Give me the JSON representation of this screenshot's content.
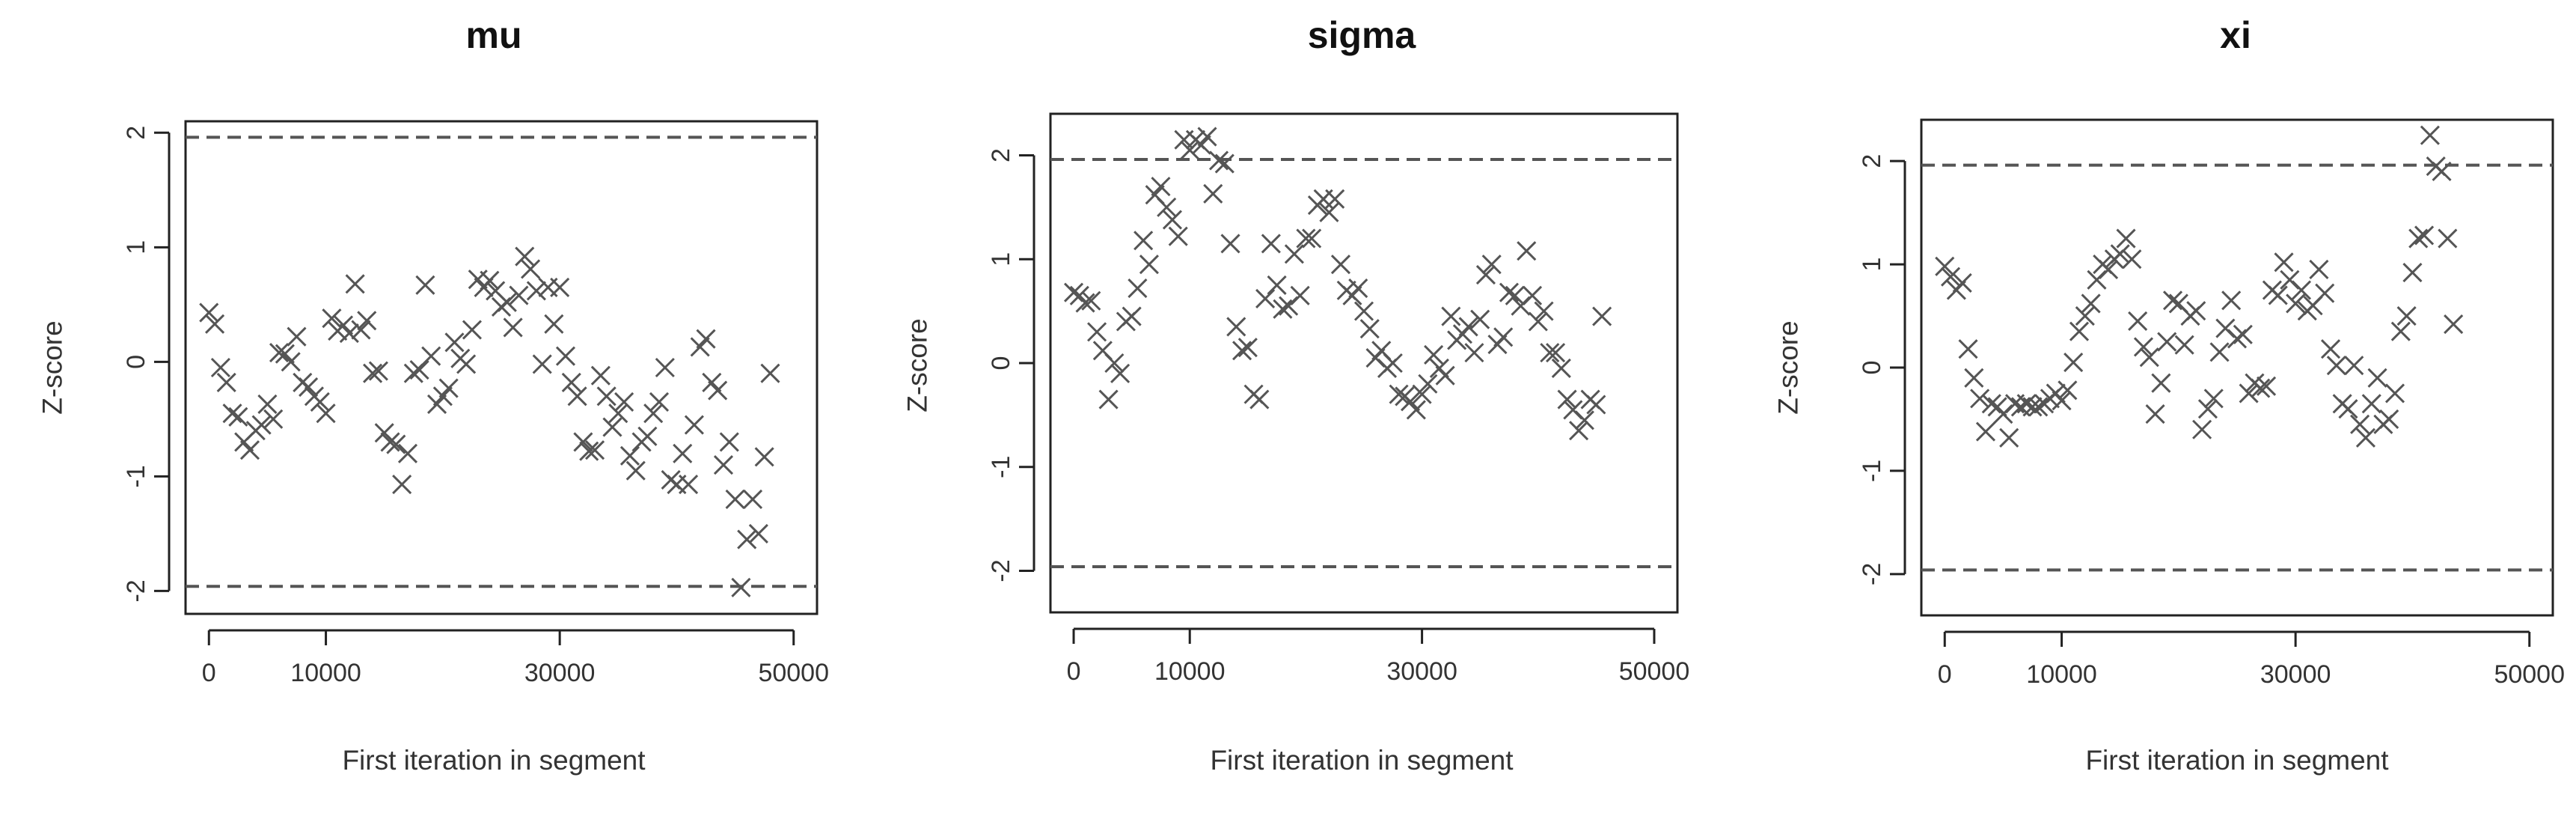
{
  "chart_data": [
    {
      "type": "scatter",
      "title": "mu",
      "xlabel": "First iteration in segment",
      "ylabel": "Z-score",
      "xlim": [
        -2000,
        52000
      ],
      "ylim": [
        -2.2,
        2.1
      ],
      "xticks": [
        0,
        10000,
        30000,
        50000
      ],
      "xtick_labels": [
        "0",
        "10000",
        "30000",
        "50000"
      ],
      "yticks": [
        -2,
        -1,
        0,
        1,
        2
      ],
      "ytick_labels": [
        "-2",
        "-1",
        "0",
        "1",
        "2"
      ],
      "reference_lines": [
        -1.96,
        1.96
      ],
      "marker": "x",
      "points": [
        [
          0,
          0.43
        ],
        [
          500,
          0.33
        ],
        [
          1000,
          -0.05
        ],
        [
          1500,
          -0.18
        ],
        [
          2000,
          -0.45
        ],
        [
          2500,
          -0.48
        ],
        [
          3000,
          -0.7
        ],
        [
          3500,
          -0.77
        ],
        [
          4000,
          -0.6
        ],
        [
          4500,
          -0.55
        ],
        [
          5000,
          -0.37
        ],
        [
          5500,
          -0.5
        ],
        [
          6000,
          0.08
        ],
        [
          6500,
          0.07
        ],
        [
          7000,
          0.0
        ],
        [
          7500,
          0.22
        ],
        [
          8000,
          -0.18
        ],
        [
          8500,
          -0.22
        ],
        [
          9000,
          -0.3
        ],
        [
          9500,
          -0.35
        ],
        [
          10000,
          -0.45
        ],
        [
          10500,
          0.38
        ],
        [
          11000,
          0.27
        ],
        [
          11500,
          0.32
        ],
        [
          12000,
          0.25
        ],
        [
          12500,
          0.68
        ],
        [
          13000,
          0.28
        ],
        [
          13500,
          0.36
        ],
        [
          14000,
          -0.1
        ],
        [
          14500,
          -0.08
        ],
        [
          15000,
          -0.62
        ],
        [
          15500,
          -0.7
        ],
        [
          16000,
          -0.72
        ],
        [
          16500,
          -1.07
        ],
        [
          17000,
          -0.8
        ],
        [
          17500,
          -0.1
        ],
        [
          18000,
          -0.07
        ],
        [
          18500,
          0.67
        ],
        [
          19000,
          0.05
        ],
        [
          19500,
          -0.37
        ],
        [
          20000,
          -0.3
        ],
        [
          20500,
          -0.23
        ],
        [
          21000,
          0.17
        ],
        [
          21500,
          0.03
        ],
        [
          22000,
          -0.02
        ],
        [
          22500,
          0.28
        ],
        [
          23000,
          0.72
        ],
        [
          23500,
          0.65
        ],
        [
          24000,
          0.71
        ],
        [
          24500,
          0.62
        ],
        [
          25000,
          0.48
        ],
        [
          25500,
          0.52
        ],
        [
          26000,
          0.3
        ],
        [
          26500,
          0.58
        ],
        [
          27000,
          0.92
        ],
        [
          27500,
          0.81
        ],
        [
          28000,
          0.62
        ],
        [
          28500,
          -0.02
        ],
        [
          29000,
          0.65
        ],
        [
          29500,
          0.33
        ],
        [
          30000,
          0.65
        ],
        [
          30500,
          0.05
        ],
        [
          31000,
          -0.18
        ],
        [
          31500,
          -0.3
        ],
        [
          32000,
          -0.7
        ],
        [
          32500,
          -0.78
        ],
        [
          33000,
          -0.77
        ],
        [
          33500,
          -0.12
        ],
        [
          34000,
          -0.3
        ],
        [
          34500,
          -0.57
        ],
        [
          35000,
          -0.45
        ],
        [
          35500,
          -0.35
        ],
        [
          36000,
          -0.82
        ],
        [
          36500,
          -0.95
        ],
        [
          37000,
          -0.7
        ],
        [
          37500,
          -0.65
        ],
        [
          38000,
          -0.45
        ],
        [
          38500,
          -0.35
        ],
        [
          39000,
          -0.05
        ],
        [
          39500,
          -1.03
        ],
        [
          40000,
          -1.07
        ],
        [
          40500,
          -0.8
        ],
        [
          41000,
          -1.07
        ],
        [
          41500,
          -0.55
        ],
        [
          42000,
          0.13
        ],
        [
          42500,
          0.2
        ],
        [
          43000,
          -0.18
        ],
        [
          43500,
          -0.25
        ],
        [
          44000,
          -0.9
        ],
        [
          44500,
          -0.7
        ],
        [
          45000,
          -1.2
        ],
        [
          45500,
          -1.97
        ],
        [
          46000,
          -1.55
        ],
        [
          46500,
          -1.2
        ],
        [
          47000,
          -1.5
        ],
        [
          47500,
          -0.83
        ],
        [
          48000,
          -0.1
        ]
      ]
    },
    {
      "type": "scatter",
      "title": "sigma",
      "xlabel": "First iteration in segment",
      "ylabel": "Z-score",
      "xlim": [
        -2000,
        52000
      ],
      "ylim": [
        -2.4,
        2.4
      ],
      "xticks": [
        0,
        10000,
        30000,
        50000
      ],
      "xtick_labels": [
        "0",
        "10000",
        "30000",
        "50000"
      ],
      "yticks": [
        -2,
        -1,
        0,
        1,
        2
      ],
      "ytick_labels": [
        "-2",
        "-1",
        "0",
        "1",
        "2"
      ],
      "reference_lines": [
        -1.96,
        1.96
      ],
      "marker": "x",
      "points": [
        [
          0,
          0.68
        ],
        [
          500,
          0.65
        ],
        [
          1000,
          0.58
        ],
        [
          1500,
          0.6
        ],
        [
          2000,
          0.3
        ],
        [
          2500,
          0.12
        ],
        [
          3000,
          -0.35
        ],
        [
          3500,
          0.0
        ],
        [
          4000,
          -0.1
        ],
        [
          4500,
          0.4
        ],
        [
          5000,
          0.45
        ],
        [
          5500,
          0.72
        ],
        [
          6000,
          1.18
        ],
        [
          6500,
          0.95
        ],
        [
          7000,
          1.62
        ],
        [
          7500,
          1.7
        ],
        [
          8000,
          1.5
        ],
        [
          8500,
          1.38
        ],
        [
          9000,
          1.22
        ],
        [
          9500,
          2.15
        ],
        [
          10000,
          2.05
        ],
        [
          10500,
          2.15
        ],
        [
          11000,
          2.1
        ],
        [
          11500,
          2.18
        ],
        [
          12000,
          1.63
        ],
        [
          12500,
          1.95
        ],
        [
          13000,
          1.92
        ],
        [
          13500,
          1.15
        ],
        [
          14000,
          0.35
        ],
        [
          14500,
          0.12
        ],
        [
          15000,
          0.15
        ],
        [
          15500,
          -0.3
        ],
        [
          16000,
          -0.35
        ],
        [
          16500,
          0.62
        ],
        [
          17000,
          1.15
        ],
        [
          17500,
          0.75
        ],
        [
          18000,
          0.52
        ],
        [
          18500,
          0.55
        ],
        [
          19000,
          1.05
        ],
        [
          19500,
          0.65
        ],
        [
          20000,
          1.2
        ],
        [
          20500,
          1.2
        ],
        [
          21000,
          1.52
        ],
        [
          21500,
          1.58
        ],
        [
          22000,
          1.45
        ],
        [
          22500,
          1.58
        ],
        [
          23000,
          0.95
        ],
        [
          23500,
          0.7
        ],
        [
          24000,
          0.65
        ],
        [
          24500,
          0.72
        ],
        [
          25000,
          0.5
        ],
        [
          25500,
          0.33
        ],
        [
          26000,
          0.05
        ],
        [
          26500,
          0.12
        ],
        [
          27000,
          -0.05
        ],
        [
          27500,
          0.0
        ],
        [
          28000,
          -0.3
        ],
        [
          28500,
          -0.32
        ],
        [
          29000,
          -0.37
        ],
        [
          29500,
          -0.45
        ],
        [
          30000,
          -0.3
        ],
        [
          30500,
          -0.2
        ],
        [
          31000,
          0.08
        ],
        [
          31500,
          -0.05
        ],
        [
          32000,
          -0.12
        ],
        [
          32500,
          0.45
        ],
        [
          33000,
          0.22
        ],
        [
          33500,
          0.28
        ],
        [
          34000,
          0.35
        ],
        [
          34500,
          0.1
        ],
        [
          35000,
          0.42
        ],
        [
          35500,
          0.85
        ],
        [
          36000,
          0.95
        ],
        [
          36500,
          0.18
        ],
        [
          37000,
          0.25
        ],
        [
          37500,
          0.68
        ],
        [
          38000,
          0.65
        ],
        [
          38500,
          0.55
        ],
        [
          39000,
          1.08
        ],
        [
          39500,
          0.65
        ],
        [
          40000,
          0.4
        ],
        [
          40500,
          0.5
        ],
        [
          41000,
          0.1
        ],
        [
          41500,
          0.1
        ],
        [
          42000,
          -0.05
        ],
        [
          42500,
          -0.35
        ],
        [
          43000,
          -0.45
        ],
        [
          43500,
          -0.65
        ],
        [
          44000,
          -0.55
        ],
        [
          44500,
          -0.35
        ],
        [
          45000,
          -0.4
        ],
        [
          45500,
          0.45
        ]
      ]
    },
    {
      "type": "scatter",
      "title": "xi",
      "xlabel": "First iteration in segment",
      "ylabel": "Z-score",
      "xlim": [
        -2000,
        52000
      ],
      "ylim": [
        -2.4,
        2.4
      ],
      "xticks": [
        0,
        10000,
        30000,
        50000
      ],
      "xtick_labels": [
        "0",
        "10000",
        "30000",
        "50000"
      ],
      "yticks": [
        -2,
        -1,
        0,
        1,
        2
      ],
      "ytick_labels": [
        "-2",
        "-1",
        "0",
        "1",
        "2"
      ],
      "reference_lines": [
        -1.96,
        1.96
      ],
      "marker": "x",
      "points": [
        [
          0,
          0.98
        ],
        [
          500,
          0.88
        ],
        [
          1000,
          0.75
        ],
        [
          1500,
          0.82
        ],
        [
          2000,
          0.18
        ],
        [
          2500,
          -0.1
        ],
        [
          3000,
          -0.3
        ],
        [
          3500,
          -0.62
        ],
        [
          4000,
          -0.35
        ],
        [
          4500,
          -0.38
        ],
        [
          5000,
          -0.45
        ],
        [
          5500,
          -0.68
        ],
        [
          6000,
          -0.35
        ],
        [
          6500,
          -0.38
        ],
        [
          7000,
          -0.35
        ],
        [
          7500,
          -0.38
        ],
        [
          8000,
          -0.38
        ],
        [
          8500,
          -0.35
        ],
        [
          9000,
          -0.3
        ],
        [
          9500,
          -0.25
        ],
        [
          10000,
          -0.32
        ],
        [
          10500,
          -0.22
        ],
        [
          11000,
          0.05
        ],
        [
          11500,
          0.35
        ],
        [
          12000,
          0.5
        ],
        [
          12500,
          0.62
        ],
        [
          13000,
          0.85
        ],
        [
          13500,
          1.0
        ],
        [
          14000,
          0.95
        ],
        [
          14500,
          1.05
        ],
        [
          15000,
          1.1
        ],
        [
          15500,
          1.25
        ],
        [
          16000,
          1.05
        ],
        [
          16500,
          0.45
        ],
        [
          17000,
          0.2
        ],
        [
          17500,
          0.1
        ],
        [
          18000,
          -0.45
        ],
        [
          18500,
          -0.15
        ],
        [
          19000,
          0.25
        ],
        [
          19500,
          0.65
        ],
        [
          20000,
          0.62
        ],
        [
          20500,
          0.22
        ],
        [
          21000,
          0.5
        ],
        [
          21500,
          0.55
        ],
        [
          22000,
          -0.6
        ],
        [
          22500,
          -0.4
        ],
        [
          23000,
          -0.3
        ],
        [
          23500,
          0.15
        ],
        [
          24000,
          0.38
        ],
        [
          24500,
          0.65
        ],
        [
          25000,
          0.28
        ],
        [
          25500,
          0.32
        ],
        [
          26000,
          -0.25
        ],
        [
          26500,
          -0.15
        ],
        [
          27000,
          -0.2
        ],
        [
          27500,
          -0.18
        ],
        [
          28000,
          0.75
        ],
        [
          28500,
          0.7
        ],
        [
          29000,
          1.02
        ],
        [
          29500,
          0.85
        ],
        [
          30000,
          0.62
        ],
        [
          30500,
          0.75
        ],
        [
          31000,
          0.55
        ],
        [
          31500,
          0.6
        ],
        [
          32000,
          0.95
        ],
        [
          32500,
          0.72
        ],
        [
          33000,
          0.18
        ],
        [
          33500,
          0.02
        ],
        [
          34000,
          -0.35
        ],
        [
          34500,
          -0.4
        ],
        [
          35000,
          0.02
        ],
        [
          35500,
          -0.55
        ],
        [
          36000,
          -0.68
        ],
        [
          36500,
          -0.35
        ],
        [
          37000,
          -0.1
        ],
        [
          37500,
          -0.55
        ],
        [
          38000,
          -0.5
        ],
        [
          38500,
          -0.25
        ],
        [
          39000,
          0.35
        ],
        [
          39500,
          0.5
        ],
        [
          40000,
          0.92
        ],
        [
          40500,
          1.25
        ],
        [
          41000,
          1.28
        ],
        [
          41500,
          2.25
        ],
        [
          42000,
          1.95
        ],
        [
          42500,
          1.9
        ],
        [
          43000,
          1.25
        ],
        [
          43500,
          0.42
        ]
      ]
    }
  ]
}
